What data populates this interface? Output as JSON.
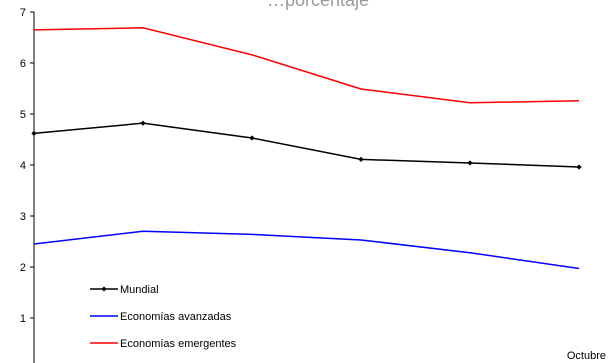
{
  "chart_data": {
    "type": "line",
    "title": "…porcentaje",
    "xlabel": "",
    "ylabel": "",
    "ylim": [
      0,
      7
    ],
    "yticks": [
      1,
      2,
      3,
      4,
      5,
      6,
      7
    ],
    "x": [
      1,
      2,
      3,
      4,
      5,
      6
    ],
    "grid": false,
    "legend_position": "bottom-left",
    "corner_label": "Octubre",
    "series": [
      {
        "name": "Mundial",
        "color": "#000000",
        "marker": "diamond",
        "values": [
          4.62,
          4.82,
          4.53,
          4.11,
          4.04,
          3.96
        ]
      },
      {
        "name": "Economías avanzadas",
        "color": "#0000ff",
        "marker": "none",
        "values": [
          2.45,
          2.7,
          2.64,
          2.53,
          2.28,
          1.97
        ]
      },
      {
        "name": "Economías emergentes",
        "color": "#ff0000",
        "marker": "none",
        "values": [
          6.65,
          6.69,
          6.16,
          5.49,
          5.22,
          5.26
        ]
      }
    ]
  }
}
